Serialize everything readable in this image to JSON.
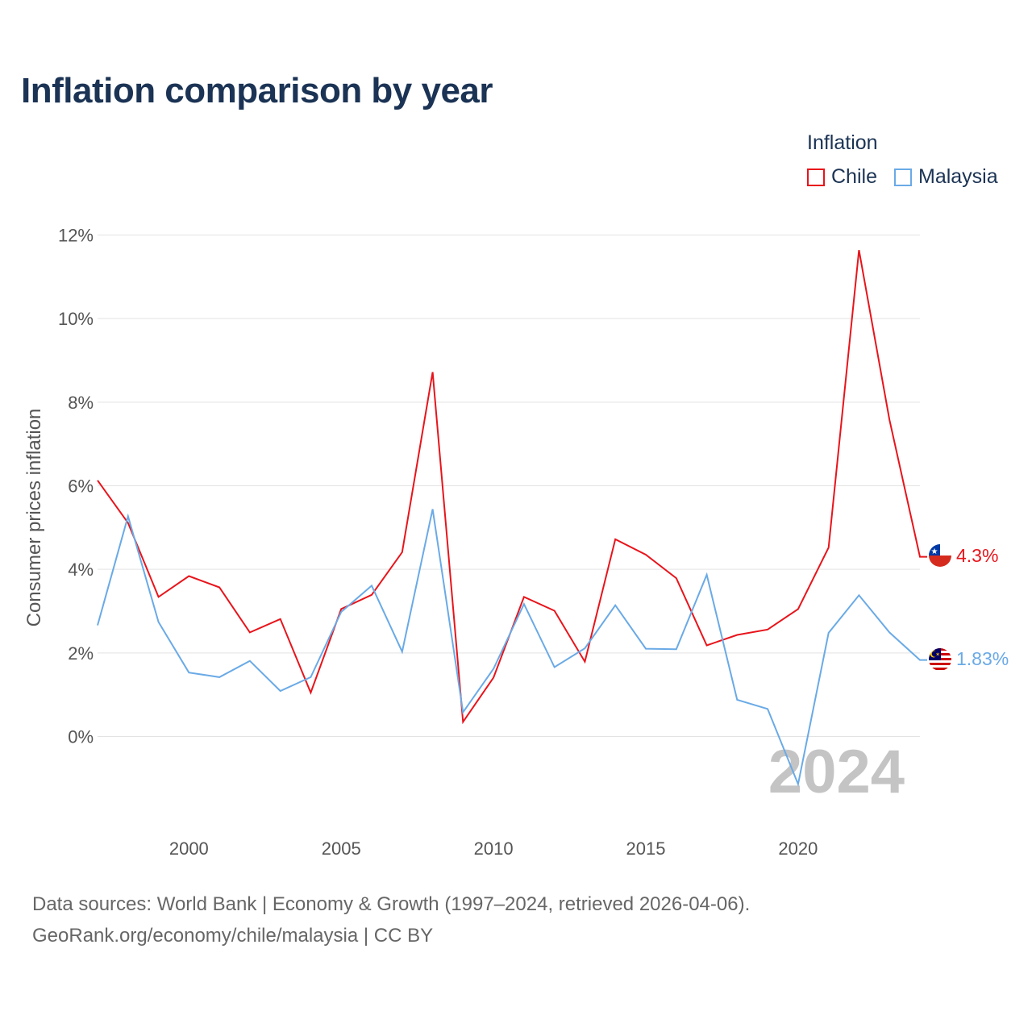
{
  "title": "Inflation comparison by year",
  "legend": {
    "title": "Inflation",
    "items": [
      {
        "label": "Chile",
        "color": "#e8141b"
      },
      {
        "label": "Malaysia",
        "color": "#6aaae6"
      }
    ]
  },
  "source": {
    "line1": "Data sources: World Bank | Economy & Growth (1997–2024, retrieved 2026-04-06).",
    "line2": "GeoRank.org/economy/chile/malaysia | CC BY"
  },
  "chart_data": {
    "type": "line",
    "title": "Inflation comparison by year",
    "xlabel": "",
    "ylabel": "Consumer prices inflation",
    "xlim": [
      1997,
      2024
    ],
    "ylim": [
      -2,
      12
    ],
    "y_ticks": [
      0,
      2,
      4,
      6,
      8,
      10,
      12
    ],
    "y_tick_labels": [
      "0%",
      "2%",
      "4%",
      "6%",
      "8%",
      "10%",
      "12%"
    ],
    "x_ticks": [
      2000,
      2005,
      2010,
      2015,
      2020
    ],
    "x_tick_labels": [
      "2000",
      "2005",
      "2010",
      "2015",
      "2020"
    ],
    "grid": true,
    "legend_position": "top-right",
    "highlight_year_label": "2024",
    "x": [
      1997,
      1998,
      1999,
      2000,
      2001,
      2002,
      2003,
      2004,
      2005,
      2006,
      2007,
      2008,
      2009,
      2010,
      2011,
      2012,
      2013,
      2014,
      2015,
      2016,
      2017,
      2018,
      2019,
      2020,
      2021,
      2022,
      2023,
      2024
    ],
    "series": [
      {
        "name": "Chile",
        "color": "#e8141b",
        "end_label": "4.3%",
        "flag": "chile-flag",
        "values": [
          6.13,
          5.11,
          3.34,
          3.84,
          3.57,
          2.49,
          2.81,
          1.05,
          3.05,
          3.39,
          4.41,
          8.72,
          0.35,
          1.41,
          3.34,
          3.01,
          1.79,
          4.72,
          4.35,
          3.79,
          2.18,
          2.43,
          2.56,
          3.05,
          4.52,
          11.64,
          7.58,
          4.3
        ]
      },
      {
        "name": "Malaysia",
        "color": "#6aaae6",
        "end_label": "1.83%",
        "flag": "malaysia-flag",
        "values": [
          2.66,
          5.27,
          2.74,
          1.53,
          1.42,
          1.81,
          1.09,
          1.42,
          2.98,
          3.61,
          2.03,
          5.44,
          0.58,
          1.62,
          3.17,
          1.66,
          2.11,
          3.14,
          2.1,
          2.09,
          3.87,
          0.88,
          0.66,
          -1.14,
          2.48,
          3.38,
          2.49,
          1.83
        ]
      }
    ]
  }
}
